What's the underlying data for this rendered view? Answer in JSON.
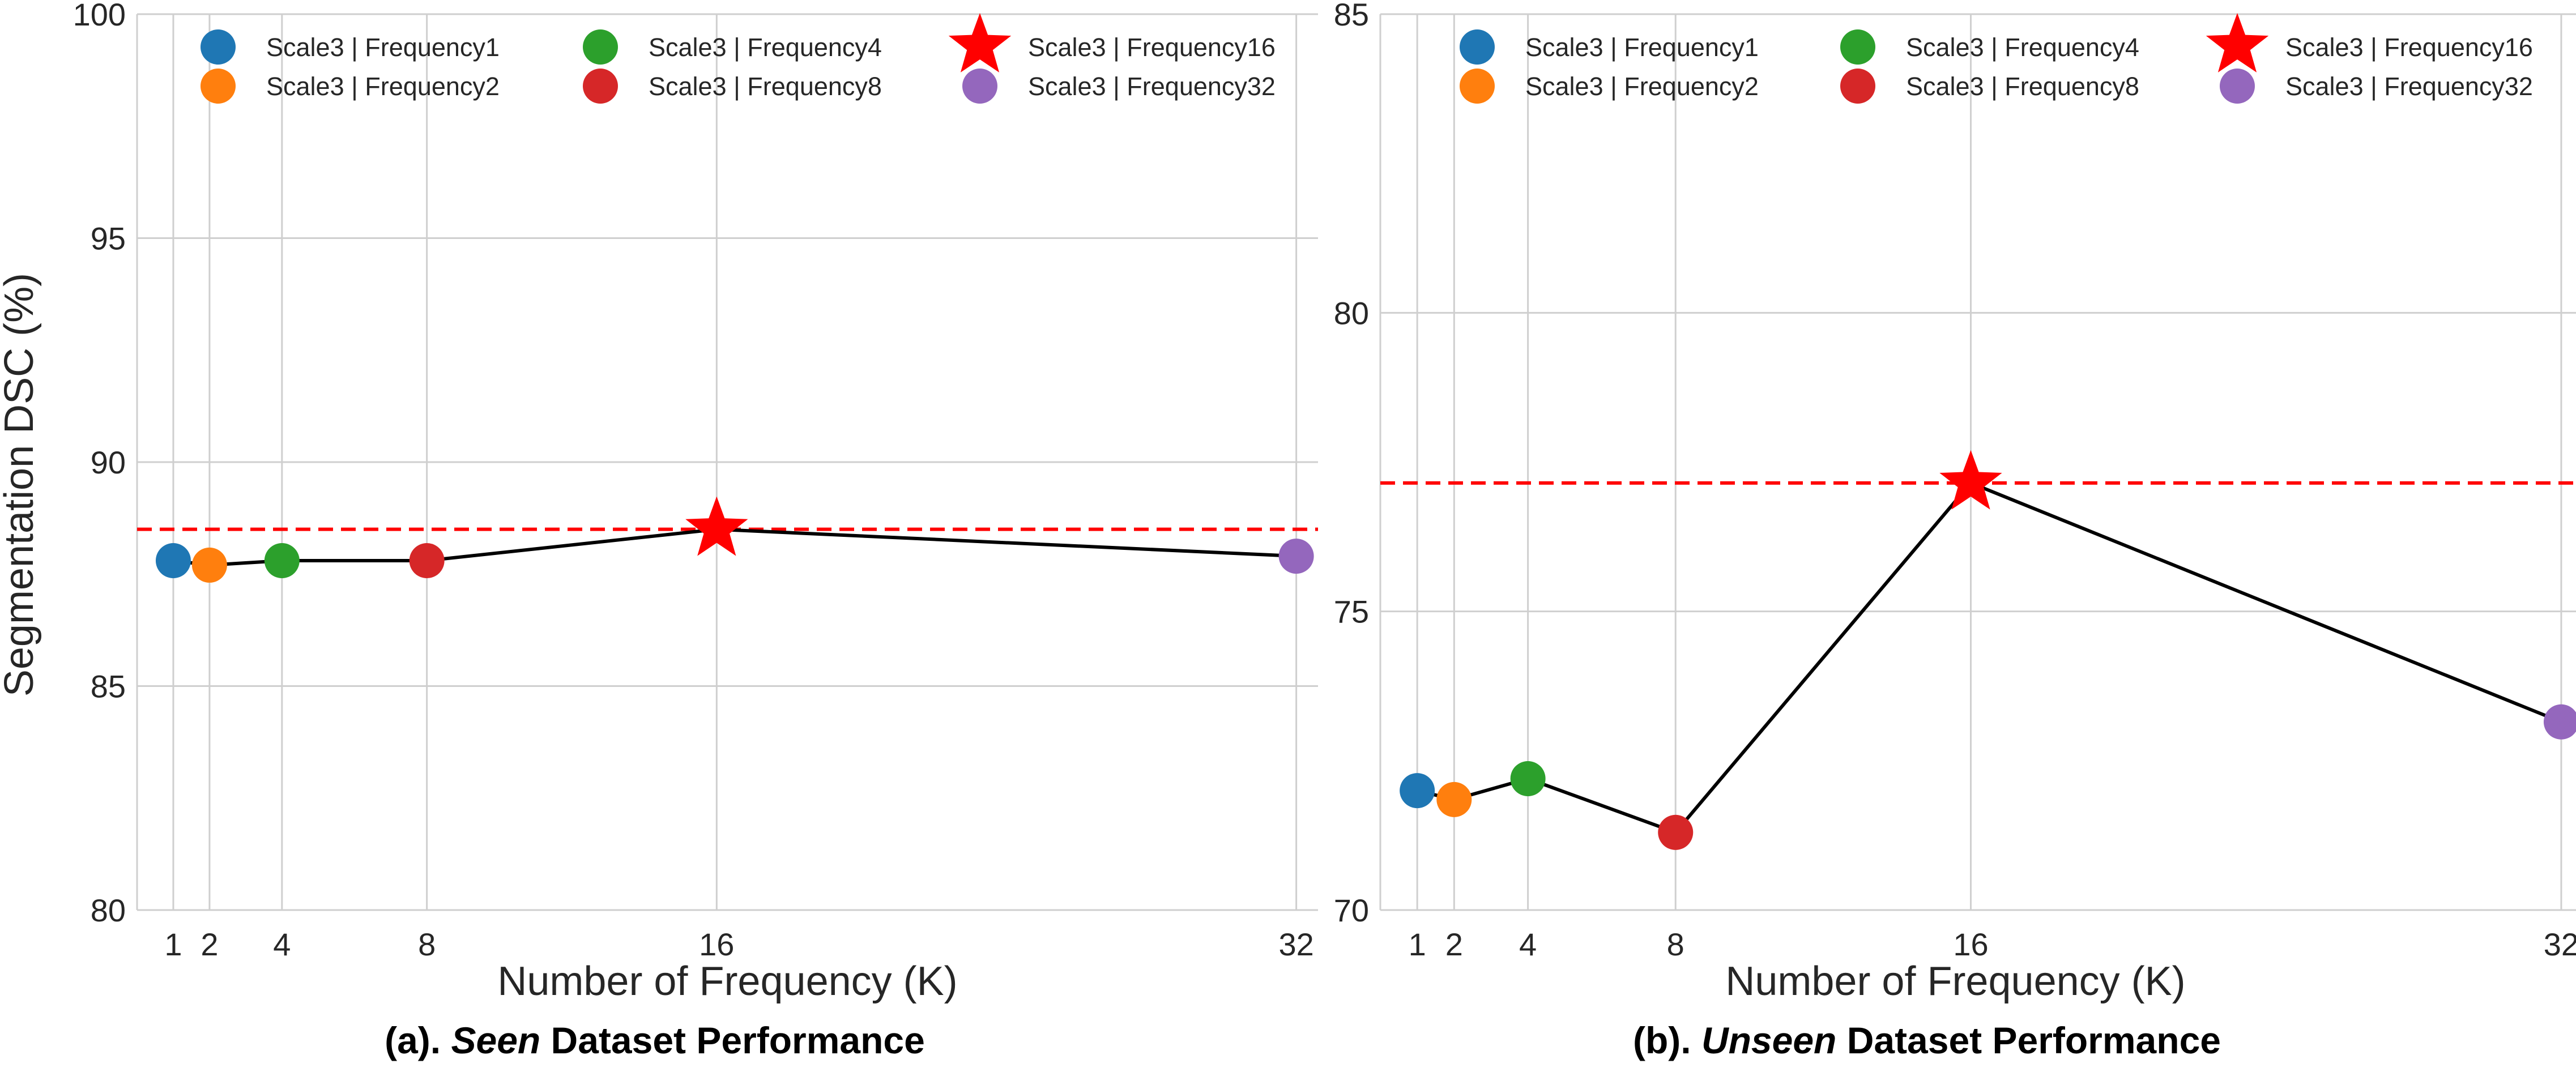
{
  "chart_data": [
    {
      "type": "line",
      "caption_prefix": "(a). ",
      "caption_emph": "Seen",
      "caption_suffix": " Dataset Performance",
      "xlabel": "Number of Frequency (K)",
      "ylabel": "Segmentation DSC (%)",
      "x_ticks": [
        1,
        2,
        4,
        8,
        16,
        32
      ],
      "y_ticks": [
        80,
        85,
        90,
        95,
        100
      ],
      "ylim": [
        80,
        100
      ],
      "grid": true,
      "legend_position": "top",
      "reference_line": {
        "value": 88.5,
        "color": "#ff0000",
        "style": "dashed"
      },
      "series": [
        {
          "name": "Scale3 | Frequency1",
          "x": 1,
          "y": 87.8,
          "color": "#1f77b4",
          "marker": "circle"
        },
        {
          "name": "Scale3 | Frequency2",
          "x": 2,
          "y": 87.7,
          "color": "#ff7f0e",
          "marker": "circle"
        },
        {
          "name": "Scale3 | Frequency4",
          "x": 4,
          "y": 87.8,
          "color": "#2ca02c",
          "marker": "circle"
        },
        {
          "name": "Scale3 | Frequency8",
          "x": 8,
          "y": 87.8,
          "color": "#d62728",
          "marker": "circle"
        },
        {
          "name": "Scale3 | Frequency16",
          "x": 16,
          "y": 88.5,
          "color": "#ff0000",
          "marker": "star"
        },
        {
          "name": "Scale3 | Frequency32",
          "x": 32,
          "y": 87.9,
          "color": "#9467bd",
          "marker": "circle"
        }
      ]
    },
    {
      "type": "line",
      "caption_prefix": "(b). ",
      "caption_emph": "Unseen",
      "caption_suffix": " Dataset Performance",
      "xlabel": "Number of Frequency (K)",
      "ylabel": "",
      "x_ticks": [
        1,
        2,
        4,
        8,
        16,
        32
      ],
      "y_ticks": [
        70,
        75,
        80,
        85
      ],
      "ylim": [
        70,
        85
      ],
      "grid": true,
      "legend_position": "top",
      "reference_line": {
        "value": 77.15,
        "color": "#ff0000",
        "style": "dashed"
      },
      "series": [
        {
          "name": "Scale3 | Frequency1",
          "x": 1,
          "y": 72.0,
          "color": "#1f77b4",
          "marker": "circle"
        },
        {
          "name": "Scale3 | Frequency2",
          "x": 2,
          "y": 71.85,
          "color": "#ff7f0e",
          "marker": "circle"
        },
        {
          "name": "Scale3 | Frequency4",
          "x": 4,
          "y": 72.2,
          "color": "#2ca02c",
          "marker": "circle"
        },
        {
          "name": "Scale3 | Frequency8",
          "x": 8,
          "y": 71.3,
          "color": "#d62728",
          "marker": "circle"
        },
        {
          "name": "Scale3 | Frequency16",
          "x": 16,
          "y": 77.15,
          "color": "#ff0000",
          "marker": "star"
        },
        {
          "name": "Scale3 | Frequency32",
          "x": 32,
          "y": 73.15,
          "color": "#9467bd",
          "marker": "circle"
        }
      ]
    }
  ]
}
